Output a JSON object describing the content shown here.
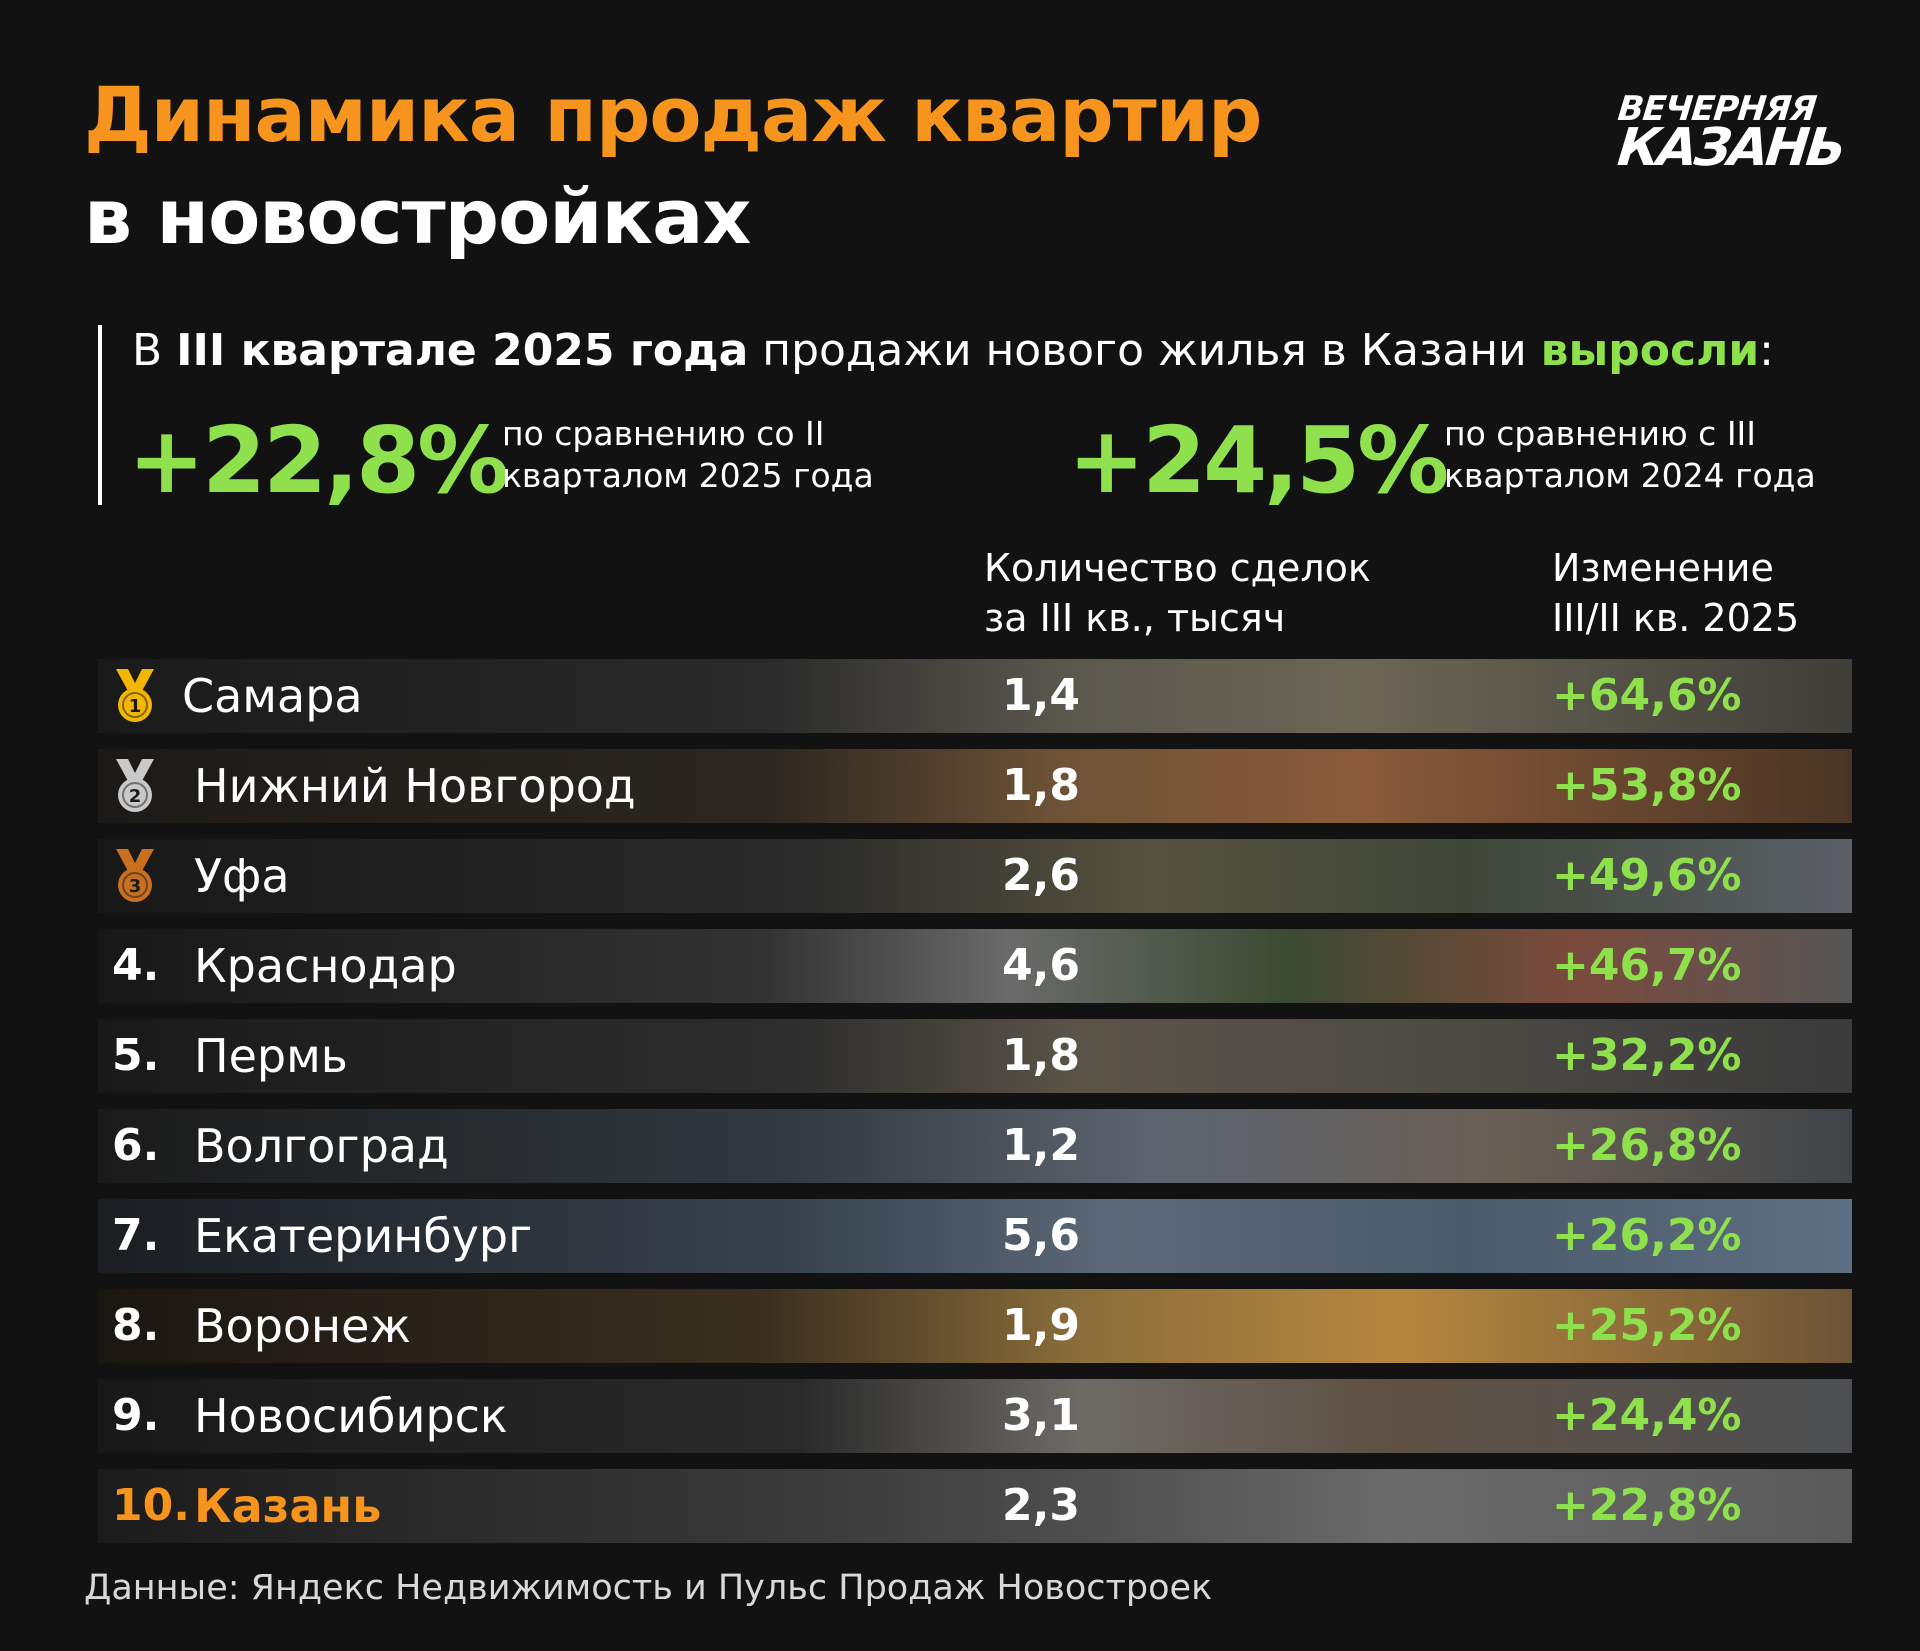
{
  "title": {
    "line1": "Динамика продаж квартир",
    "line2": "в новостройках"
  },
  "logo": {
    "line1": "ВЕЧЕРНЯЯ",
    "line2": "КАЗАНЬ"
  },
  "summary": {
    "prefix": "В ",
    "bold": "III квартале 2025 года",
    "middle": " продажи нового жилья в Казани ",
    "highlight": "выросли",
    "suffix": ":",
    "stat1_value": "+22,8%",
    "stat1_note_line1": "по сравнению со II",
    "stat1_note_line2": "кварталом 2025 года",
    "stat2_value": "+24,5%",
    "stat2_note_line1": "по сравнению с III",
    "stat2_note_line2": "кварталом 2024 года"
  },
  "headers": {
    "deals_line1": "Количество сделок",
    "deals_line2": "за III кв., тысяч",
    "change_line1": "Изменение",
    "change_line2": "III/II кв. 2025"
  },
  "colors": {
    "accent_orange": "#f7941d",
    "positive_green": "#8ee04c",
    "gold": "#f2b705",
    "silver": "#c9c9c9",
    "bronze": "#c8701f"
  },
  "chart_data": {
    "type": "table",
    "columns": [
      "Количество сделок за III кв., тысяч",
      "Изменение III/II кв. 2025"
    ],
    "rows": [
      {
        "rank": "1",
        "medal": "gold-medal-icon",
        "city": "Самара",
        "deals": "1,4",
        "change": "+64,6%",
        "deals_value": 1.4,
        "change_value": 64.6
      },
      {
        "rank": "2",
        "medal": "silver-medal-icon",
        "city": "Нижний Новгород",
        "deals": "1,8",
        "change": "+53,8%",
        "deals_value": 1.8,
        "change_value": 53.8
      },
      {
        "rank": "3",
        "medal": "bronze-medal-icon",
        "city": "Уфа",
        "deals": "2,6",
        "change": "+49,6%",
        "deals_value": 2.6,
        "change_value": 49.6
      },
      {
        "rank": "4.",
        "city": "Краснодар",
        "deals": "4,6",
        "change": "+46,7%",
        "deals_value": 4.6,
        "change_value": 46.7
      },
      {
        "rank": "5.",
        "city": "Пермь",
        "deals": "1,8",
        "change": "+32,2%",
        "deals_value": 1.8,
        "change_value": 32.2
      },
      {
        "rank": "6.",
        "city": "Волгоград",
        "deals": "1,2",
        "change": "+26,8%",
        "deals_value": 1.2,
        "change_value": 26.8
      },
      {
        "rank": "7.",
        "city": "Екатеринбург",
        "deals": "5,6",
        "change": "+26,2%",
        "deals_value": 5.6,
        "change_value": 26.2
      },
      {
        "rank": "8.",
        "city": "Воронеж",
        "deals": "1,9",
        "change": "+25,2%",
        "deals_value": 1.9,
        "change_value": 25.2
      },
      {
        "rank": "9.",
        "city": "Новосибирск",
        "deals": "3,1",
        "change": "+24,4%",
        "deals_value": 3.1,
        "change_value": 24.4
      },
      {
        "rank": "10.",
        "city": "Казань",
        "deals": "2,3",
        "change": "+22,8%",
        "deals_value": 2.3,
        "change_value": 22.8,
        "highlight": true
      }
    ]
  },
  "source": "Данные: Яндекс Недвижимость и Пульс Продаж Новостроек"
}
